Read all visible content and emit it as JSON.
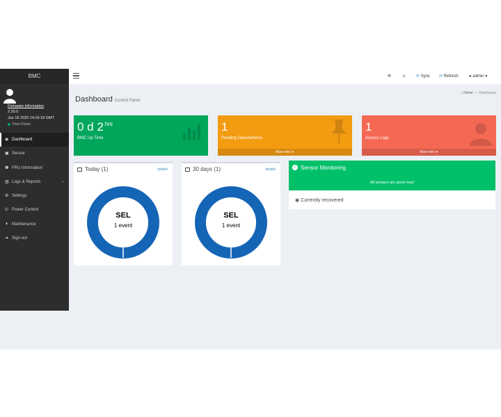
{
  "sidebar": {
    "brand": "BMC",
    "firmware_link": "Firmware Information",
    "firmware_version": "2.20.0",
    "firmware_date": "Jun 16 2020 14:16:18 GMT",
    "host_status": "Host Online",
    "items": [
      {
        "label": "Dashboard",
        "icon": "dashboard-icon"
      },
      {
        "label": "Sensor",
        "icon": "sensor-icon"
      },
      {
        "label": "FRU Information",
        "icon": "info-icon"
      },
      {
        "label": "Logs & Reports",
        "icon": "chart-icon"
      },
      {
        "label": "Settings",
        "icon": "gear-icon"
      },
      {
        "label": "Power Control",
        "icon": "power-icon"
      },
      {
        "label": "Maintenance",
        "icon": "wrench-icon"
      },
      {
        "label": "Sign out",
        "icon": "sign-out-icon"
      }
    ]
  },
  "topbar": {
    "sync_label": "Sync",
    "refresh_label": "Refresh",
    "user_label": "admin"
  },
  "page": {
    "title": "Dashboard",
    "subtitle": "Control Panel",
    "breadcrumb_home": "Home",
    "breadcrumb_current": "Dashboard"
  },
  "stats": {
    "uptime_value": "0 d 2",
    "uptime_unit": "hrs",
    "uptime_label": "BMC Up Time",
    "pending_value": "1",
    "pending_label": "Pending Deassertions",
    "pending_more": "More info",
    "access_value": "1",
    "access_label": "Access Logs",
    "access_more": "More info",
    "colors": {
      "green": "#00a65a",
      "orange": "#f39c12",
      "red": "#f56954"
    }
  },
  "today": {
    "title": "Today (1)",
    "details": "details",
    "center_label": "SEL",
    "center_sub": "1 event",
    "ring_color": "#1565b7"
  },
  "days30": {
    "title": "30 days (1)",
    "details": "details",
    "center_label": "SEL",
    "center_sub": "1 event",
    "ring_color": "#1565b7"
  },
  "monitor": {
    "title": "Sensor Monitoring",
    "message": "All sensors are good now!",
    "recovered": "Currently recovered",
    "color": "#00c06a"
  }
}
